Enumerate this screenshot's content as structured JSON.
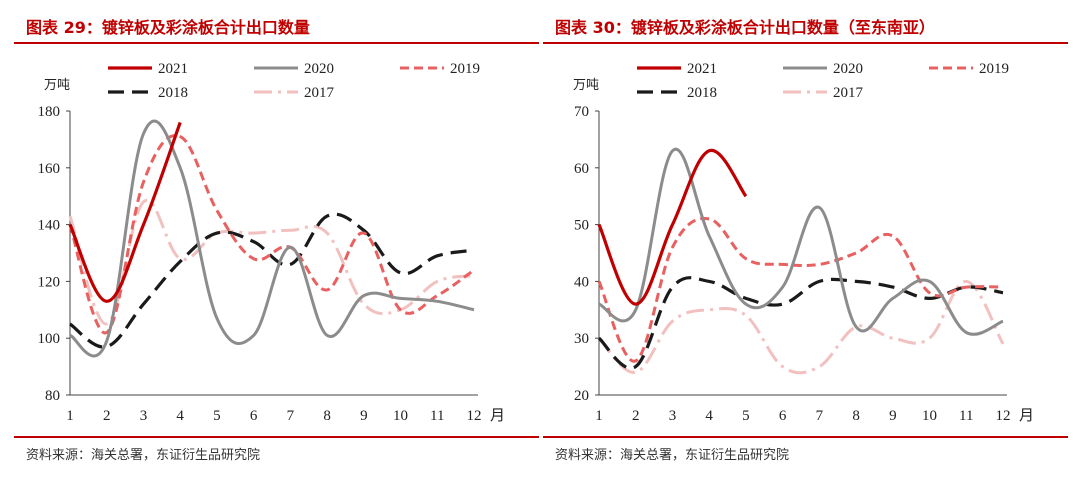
{
  "source_text": "资料来源：海关总署，东证衍生品研究院",
  "colors": {
    "2021": "#c00000",
    "2020": "#8c8c8c",
    "2019": "#e86060",
    "2018": "#1a1a1a",
    "2017": "#f3c0c0"
  },
  "chart_data": [
    {
      "type": "line",
      "title": "图表 29：镀锌板及彩涂板合计出口数量",
      "ylabel": "万吨",
      "xlabel": "月",
      "ylim": [
        80,
        180
      ],
      "yticks": [
        80,
        100,
        120,
        140,
        160,
        180
      ],
      "x": [
        1,
        2,
        3,
        4,
        5,
        6,
        7,
        8,
        9,
        10,
        11,
        12
      ],
      "legend_order": [
        "2021",
        "2020",
        "2019",
        "2018",
        "2017"
      ],
      "series": [
        {
          "name": "2021",
          "values": [
            140,
            113,
            140,
            176,
            null,
            null,
            null,
            null,
            null,
            null,
            null,
            null
          ]
        },
        {
          "name": "2020",
          "values": [
            101,
            99,
            172,
            160,
            107,
            101,
            132,
            101,
            115,
            114,
            113,
            110
          ]
        },
        {
          "name": "2019",
          "values": [
            140,
            102,
            155,
            171,
            145,
            128,
            132,
            117,
            137,
            110,
            115,
            124
          ]
        },
        {
          "name": "2018",
          "values": [
            105,
            97,
            112,
            127,
            137,
            134,
            126,
            143,
            138,
            123,
            129,
            131
          ]
        },
        {
          "name": "2017",
          "values": [
            143,
            105,
            148,
            128,
            137,
            137,
            138,
            137,
            112,
            110,
            120,
            122
          ]
        }
      ]
    },
    {
      "type": "line",
      "title": "图表 30：镀锌板及彩涂板合计出口数量（至东南亚）",
      "ylabel": "万吨",
      "xlabel": "月",
      "ylim": [
        20,
        70
      ],
      "yticks": [
        20,
        30,
        40,
        50,
        60,
        70
      ],
      "x": [
        1,
        2,
        3,
        4,
        5,
        6,
        7,
        8,
        9,
        10,
        11,
        12
      ],
      "legend_order": [
        "2021",
        "2020",
        "2019",
        "2018",
        "2017"
      ],
      "series": [
        {
          "name": "2021",
          "values": [
            50,
            36,
            50,
            63,
            55,
            null,
            null,
            null,
            null,
            null,
            null,
            null
          ]
        },
        {
          "name": "2020",
          "values": [
            36,
            35,
            63,
            48,
            36,
            39,
            53,
            32,
            37,
            40,
            31,
            33
          ]
        },
        {
          "name": "2019",
          "values": [
            40,
            26,
            46,
            51,
            44,
            43,
            43,
            45,
            48,
            38,
            39,
            39
          ]
        },
        {
          "name": "2018",
          "values": [
            30,
            25,
            39,
            40,
            37,
            36,
            40,
            40,
            39,
            37,
            39,
            38
          ]
        },
        {
          "name": "2017",
          "values": [
            30,
            24,
            33,
            35,
            34,
            25,
            25,
            32,
            30,
            30,
            40,
            29
          ]
        }
      ]
    }
  ]
}
